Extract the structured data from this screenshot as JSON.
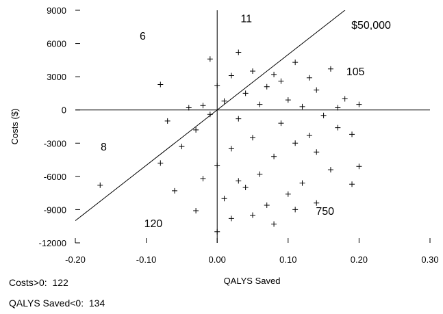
{
  "chart_data": {
    "type": "scatter",
    "title": "",
    "xlabel": "QALYS Saved",
    "ylabel": "Costs ($)",
    "xlim": [
      -0.2,
      0.3
    ],
    "ylim": [
      -12000,
      9000
    ],
    "x_ticks": [
      -0.2,
      -0.1,
      0.0,
      0.1,
      0.2,
      0.3
    ],
    "x_tick_labels": [
      "-0.20",
      "-0.10",
      "0.00",
      "0.10",
      "0.20",
      "0.30"
    ],
    "y_ticks": [
      -12000,
      -9000,
      -6000,
      -3000,
      0,
      3000,
      6000,
      9000
    ],
    "y_tick_labels": [
      "-12000",
      "-9000",
      "-6000",
      "-3000",
      "0",
      "3000",
      "6000",
      "9000"
    ],
    "grid": false,
    "marker": "+",
    "reference_lines": [
      {
        "type": "vertical",
        "x": 0
      },
      {
        "type": "horizontal",
        "y": 0
      },
      {
        "type": "threshold",
        "slope": 50000,
        "label": "$50,000"
      }
    ],
    "quadrant_counts": [
      {
        "label": "6",
        "x": -0.105,
        "y": 6700
      },
      {
        "label": "11",
        "x": 0.041,
        "y": 8300
      },
      {
        "label": "105",
        "x": 0.195,
        "y": 3500
      },
      {
        "label": "8",
        "x": -0.16,
        "y": -3300
      },
      {
        "label": "120",
        "x": -0.09,
        "y": -10200
      },
      {
        "label": "750",
        "x": 0.152,
        "y": -9100
      }
    ],
    "points": [
      {
        "x": 0.03,
        "y": 5200
      },
      {
        "x": -0.01,
        "y": 4600
      },
      {
        "x": 0.05,
        "y": 3500
      },
      {
        "x": 0.11,
        "y": 4300
      },
      {
        "x": 0.08,
        "y": 3200
      },
      {
        "x": -0.08,
        "y": 2300
      },
      {
        "x": 0.02,
        "y": 3100
      },
      {
        "x": 0.16,
        "y": 3700
      },
      {
        "x": 0.0,
        "y": 2200
      },
      {
        "x": 0.13,
        "y": 2900
      },
      {
        "x": 0.07,
        "y": 2100
      },
      {
        "x": 0.04,
        "y": 1500
      },
      {
        "x": 0.14,
        "y": 1800
      },
      {
        "x": 0.1,
        "y": 900
      },
      {
        "x": 0.01,
        "y": 800
      },
      {
        "x": 0.18,
        "y": 1000
      },
      {
        "x": 0.2,
        "y": 500
      },
      {
        "x": 0.06,
        "y": 500
      },
      {
        "x": -0.02,
        "y": 400
      },
      {
        "x": -0.04,
        "y": 200
      },
      {
        "x": 0.12,
        "y": 300
      },
      {
        "x": 0.15,
        "y": -500
      },
      {
        "x": 0.09,
        "y": -1200
      },
      {
        "x": 0.03,
        "y": -800
      },
      {
        "x": -0.07,
        "y": -1000
      },
      {
        "x": 0.17,
        "y": -1600
      },
      {
        "x": -0.03,
        "y": -1800
      },
      {
        "x": 0.05,
        "y": -2500
      },
      {
        "x": 0.19,
        "y": -2200
      },
      {
        "x": 0.11,
        "y": -3000
      },
      {
        "x": -0.05,
        "y": -3300
      },
      {
        "x": 0.02,
        "y": -3500
      },
      {
        "x": 0.14,
        "y": -3800
      },
      {
        "x": 0.08,
        "y": -4200
      },
      {
        "x": -0.08,
        "y": -4800
      },
      {
        "x": 0.0,
        "y": -5000
      },
      {
        "x": 0.16,
        "y": -5400
      },
      {
        "x": 0.06,
        "y": -5800
      },
      {
        "x": 0.2,
        "y": -5100
      },
      {
        "x": -0.02,
        "y": -6200
      },
      {
        "x": 0.12,
        "y": -6600
      },
      {
        "x": 0.04,
        "y": -7000
      },
      {
        "x": 0.19,
        "y": -6700
      },
      {
        "x": -0.06,
        "y": -7300
      },
      {
        "x": 0.1,
        "y": -7600
      },
      {
        "x": 0.01,
        "y": -8000
      },
      {
        "x": 0.07,
        "y": -8600
      },
      {
        "x": 0.14,
        "y": -8400
      },
      {
        "x": -0.03,
        "y": -9100
      },
      {
        "x": 0.05,
        "y": -9500
      },
      {
        "x": 0.11,
        "y": -9000
      },
      {
        "x": 0.02,
        "y": -9800
      },
      {
        "x": 0.08,
        "y": -10300
      },
      {
        "x": 0.0,
        "y": -11000
      },
      {
        "x": -0.165,
        "y": -6800
      },
      {
        "x": 0.17,
        "y": 200
      },
      {
        "x": 0.09,
        "y": 2600
      },
      {
        "x": -0.01,
        "y": -400
      },
      {
        "x": 0.13,
        "y": -2300
      },
      {
        "x": 0.03,
        "y": -6400
      }
    ]
  },
  "footer": {
    "line1": "Costs>0:  122",
    "line2": "QALYS Saved<0:  134"
  }
}
